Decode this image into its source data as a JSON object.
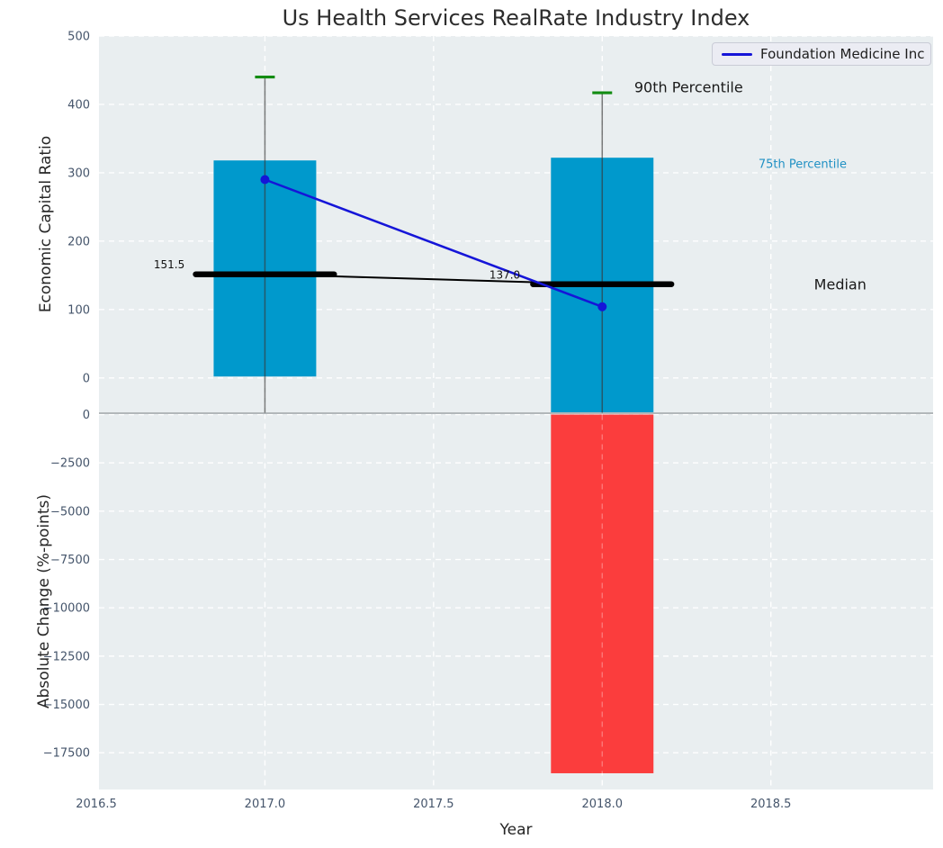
{
  "title": "Us Health Services RealRate Industry Index",
  "legend": {
    "label": "Foundation Medicine Inc",
    "position": "upper right"
  },
  "colors": {
    "bar_blue": "#0099cc",
    "bar_red": "#fb3d3d",
    "green_cap": "#128c12",
    "company_blue": "#1515d8",
    "median": "#000000",
    "whisker": "rgba(55,55,55,0.65)",
    "boundary": "#b2b7ba",
    "axes_bg": "#e9eef0",
    "grid": "#ffffff",
    "tick_text": "#45556b",
    "percentile75_text": "#2191c4"
  },
  "chart_data": [
    {
      "type": "bar",
      "panel": "top",
      "ylabel": "Economic Capital Ratio",
      "ylim": [
        -51,
        500
      ],
      "xlim": [
        2016.508,
        2018.981
      ],
      "grid": "white-dashed",
      "yticks": [
        {
          "v": 0,
          "label": "0"
        },
        {
          "v": 100,
          "label": "100"
        },
        {
          "v": 200,
          "label": "200"
        },
        {
          "v": 300,
          "label": "300"
        },
        {
          "v": 400,
          "label": "400"
        },
        {
          "v": 500,
          "label": "500"
        }
      ],
      "xticks": [
        {
          "v": 2016.5,
          "label": "2016.5"
        },
        {
          "v": 2017.0,
          "label": "2017.0"
        },
        {
          "v": 2017.5,
          "label": "2017.5"
        },
        {
          "v": 2018.0,
          "label": "2018.0"
        },
        {
          "v": 2018.5,
          "label": "2018.5"
        }
      ],
      "bars": [
        {
          "year": 2017,
          "from": 2,
          "to": 318,
          "width_years": 0.304,
          "color": "bar_blue",
          "name": "percentile-band-bar-2017"
        },
        {
          "year": 2018,
          "from": -51,
          "to": 322,
          "width_years": 0.304,
          "color": "bar_blue",
          "name": "percentile-band-bar-2018"
        }
      ],
      "percentile90_caps": [
        {
          "year": 2017,
          "v": 440
        },
        {
          "year": 2018,
          "v": 417
        }
      ],
      "whiskers": [
        {
          "year": 2017,
          "from": -51,
          "to": 440
        },
        {
          "year": 2018,
          "from": -51,
          "to": 417
        }
      ],
      "median_line": {
        "x": [
          2017,
          2018
        ],
        "y": [
          151.5,
          137.0
        ],
        "thick_halfwidth_years": 0.205
      },
      "series": [
        {
          "name": "Foundation Medicine Inc",
          "x": [
            2017,
            2018
          ],
          "y": [
            290,
            104
          ],
          "color": "company_blue",
          "markers": true
        }
      ],
      "annotations": [
        {
          "text": "151.5",
          "year": 2016.762,
          "v": 166,
          "anchor": "end",
          "size": 12,
          "color": "#111111",
          "name": "median-value-label-2017"
        },
        {
          "text": "137.0",
          "year": 2017.757,
          "v": 151,
          "anchor": "end",
          "size": 12,
          "color": "#111111",
          "name": "median-value-label-2018"
        },
        {
          "text": "90th Percentile",
          "year": 2018.095,
          "v": 425,
          "anchor": "start",
          "size": 16,
          "color": "#1a1a1a",
          "name": "label-90th-percentile"
        },
        {
          "text": "75th Percentile",
          "year": 2018.463,
          "v": 313,
          "anchor": "start",
          "size": 13,
          "color": "#2191c4",
          "name": "label-75th-percentile"
        },
        {
          "text": "Median",
          "year": 2018.628,
          "v": 136.5,
          "anchor": "start",
          "size": 16,
          "color": "#1a1a1a",
          "name": "label-median"
        }
      ]
    },
    {
      "type": "bar",
      "panel": "bottom",
      "xlabel": "Year",
      "ylabel": "Absolute Change (%-points)",
      "ylim": [
        -19400,
        47
      ],
      "grid": "white-dashed",
      "yticks": [
        {
          "v": 0,
          "label": "0"
        },
        {
          "v": -2500,
          "label": "−2500"
        },
        {
          "v": -5000,
          "label": "−5000"
        },
        {
          "v": -7500,
          "label": "−7500"
        },
        {
          "v": -10000,
          "label": "−10000"
        },
        {
          "v": -12500,
          "label": "−12500"
        },
        {
          "v": -15000,
          "label": "−15000"
        },
        {
          "v": -17500,
          "label": "−17500"
        }
      ],
      "bars": [
        {
          "year": 2018,
          "from": -18560,
          "to": 0,
          "width_years": 0.304,
          "color": "bar_red",
          "name": "absolute-change-bar-2018"
        }
      ]
    }
  ]
}
